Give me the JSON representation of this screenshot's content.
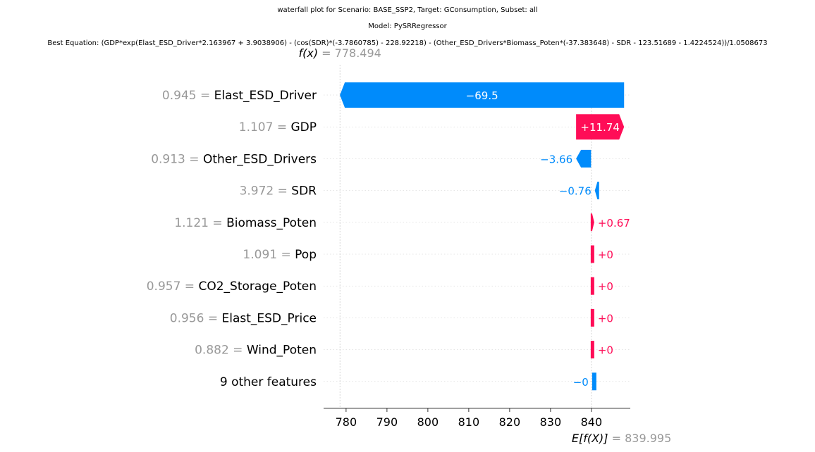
{
  "titles": {
    "line1": "waterfall plot for Scenario: BASE_SSP2, Target: GConsumption, Subset: all",
    "line2": "Model: PySRRegressor",
    "line3": "Best Equation: (GDP*exp(Elast_ESD_Driver*2.163967 + 3.9038906) - (cos(SDR)*(-3.7860785) - 228.92218) - (Other_ESD_Drivers*Biomass_Poten*(-37.383648) - SDR - 123.51689 - 1.4224524))/1.0508673"
  },
  "chart_data": {
    "type": "waterfall",
    "fx_label": "f(x)",
    "fx_value": "778.494",
    "fx": 778.494,
    "base_label": "E[f(X)]",
    "base_value": "839.995",
    "base": 839.995,
    "xlim": [
      774.5,
      849.5
    ],
    "xticks": [
      780,
      790,
      800,
      810,
      820,
      830,
      840
    ],
    "colors": {
      "positive": "#ff0d57",
      "negative": "#008bfb",
      "value_gray": "#999999"
    },
    "rows": [
      {
        "value": "0.945",
        "feature": "Elast_ESD_Driver",
        "contribution": -69.5,
        "label": "−69.5"
      },
      {
        "value": "1.107",
        "feature": "GDP",
        "contribution": 11.74,
        "label": "+11.74"
      },
      {
        "value": "0.913",
        "feature": "Other_ESD_Drivers",
        "contribution": -3.66,
        "label": "−3.66"
      },
      {
        "value": "3.972",
        "feature": "SDR",
        "contribution": -0.76,
        "label": "−0.76"
      },
      {
        "value": "1.121",
        "feature": "Biomass_Poten",
        "contribution": 0.67,
        "label": "+0.67"
      },
      {
        "value": "1.091",
        "feature": "Pop",
        "contribution": 0,
        "label": "+0"
      },
      {
        "value": "0.957",
        "feature": "CO2_Storage_Poten",
        "contribution": 0,
        "label": "+0"
      },
      {
        "value": "0.956",
        "feature": "Elast_ESD_Price",
        "contribution": 0,
        "label": "+0"
      },
      {
        "value": "0.882",
        "feature": "Wind_Poten",
        "contribution": 0,
        "label": "+0"
      },
      {
        "value": "",
        "feature": "9 other features",
        "contribution": 0,
        "label": "−0"
      }
    ]
  }
}
